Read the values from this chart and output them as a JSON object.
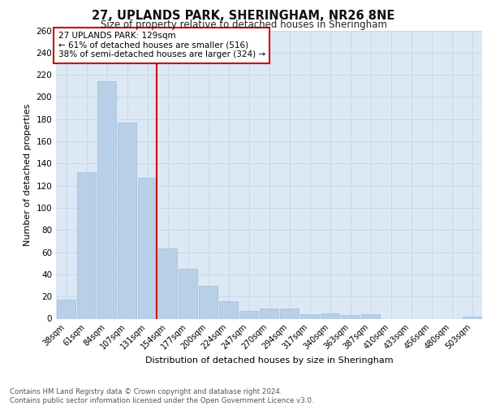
{
  "title": "27, UPLANDS PARK, SHERINGHAM, NR26 8NE",
  "subtitle": "Size of property relative to detached houses in Sheringham",
  "xlabel": "Distribution of detached houses by size in Sheringham",
  "ylabel": "Number of detached properties",
  "categories": [
    "38sqm",
    "61sqm",
    "84sqm",
    "107sqm",
    "131sqm",
    "154sqm",
    "177sqm",
    "200sqm",
    "224sqm",
    "247sqm",
    "270sqm",
    "294sqm",
    "317sqm",
    "340sqm",
    "363sqm",
    "387sqm",
    "410sqm",
    "433sqm",
    "456sqm",
    "480sqm",
    "503sqm"
  ],
  "values": [
    17,
    132,
    214,
    177,
    127,
    63,
    45,
    30,
    16,
    7,
    9,
    9,
    4,
    5,
    3,
    4,
    0,
    0,
    0,
    0,
    2
  ],
  "bar_color": "#b8cfe8",
  "highlight_line_color": "#cc0000",
  "highlight_bar_index": 4,
  "annotation_text": "27 UPLANDS PARK: 129sqm\n← 61% of detached houses are smaller (516)\n38% of semi-detached houses are larger (324) →",
  "annotation_box_color": "#ffffff",
  "annotation_box_edge_color": "#cc0000",
  "grid_color": "#c8d8e8",
  "background_color": "#dce8f4",
  "ylim": [
    0,
    260
  ],
  "yticks": [
    0,
    20,
    40,
    60,
    80,
    100,
    120,
    140,
    160,
    180,
    200,
    220,
    240,
    260
  ],
  "footer": "Contains HM Land Registry data © Crown copyright and database right 2024.\nContains public sector information licensed under the Open Government Licence v3.0."
}
